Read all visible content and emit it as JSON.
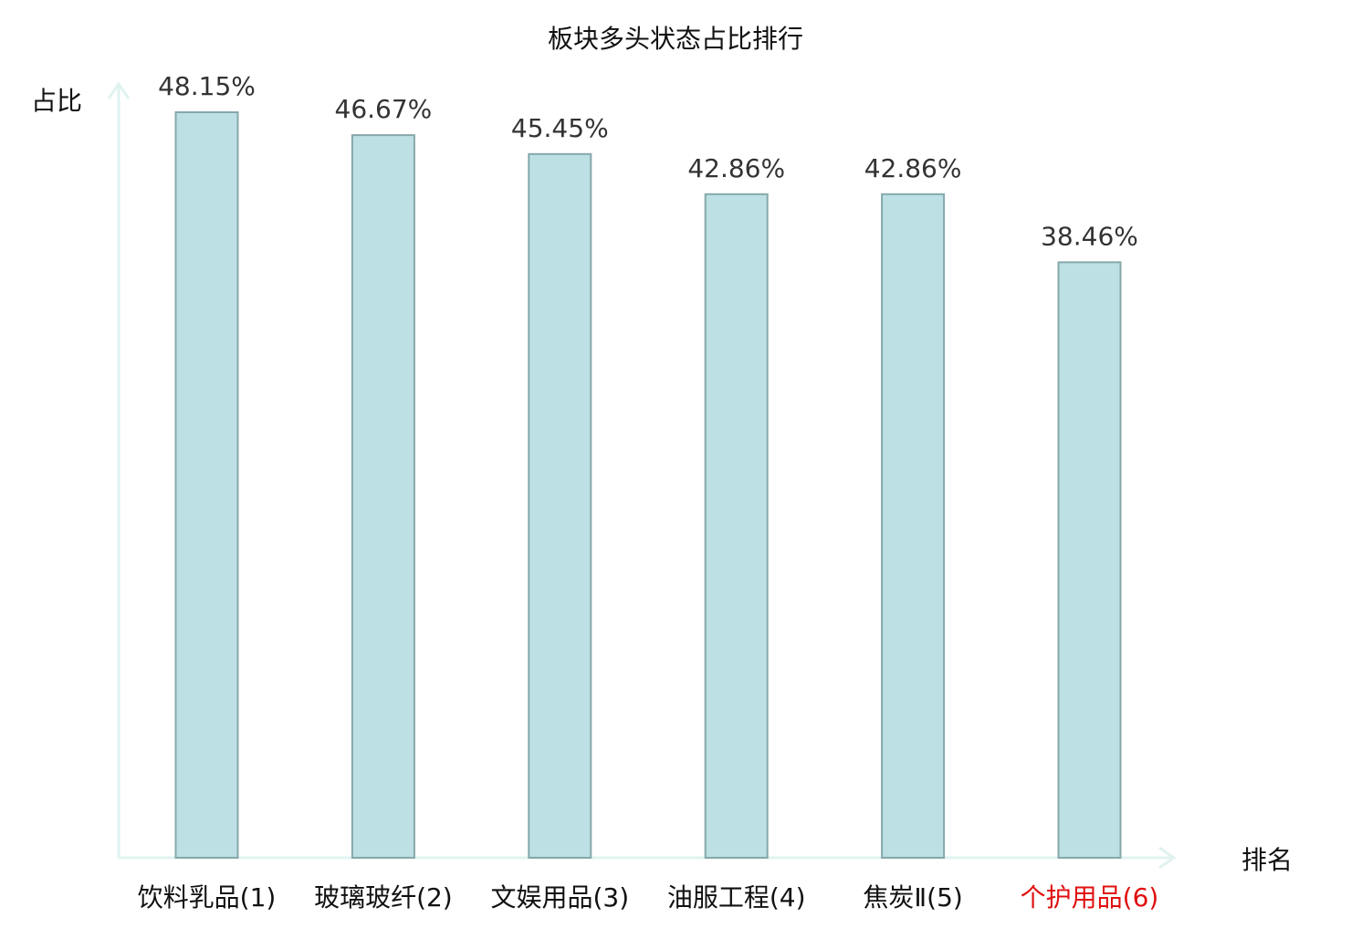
{
  "chart_data": {
    "type": "bar",
    "title": "板块多头状态占比排行",
    "ylabel": "占比",
    "xlabel": "排名",
    "categories": [
      "饮料乳品(1)",
      "玻璃玻纤(2)",
      "文娱用品(3)",
      "油服工程(4)",
      "焦炭Ⅱ(5)",
      "个护用品(6)"
    ],
    "values": [
      48.15,
      46.67,
      45.45,
      42.86,
      42.86,
      38.46
    ],
    "value_labels": [
      "48.15%",
      "46.67%",
      "45.45%",
      "42.86%",
      "42.86%",
      "38.46%"
    ],
    "highlight_index": 5,
    "ylim": [
      0,
      50
    ],
    "grid": false,
    "legend": "none"
  },
  "colors": {
    "bar_fill": "#bce0e3",
    "bar_stroke": "#86a8aa",
    "axis": "#e0f3f0",
    "category_text": "#111111",
    "highlight_text": "#e01010"
  }
}
